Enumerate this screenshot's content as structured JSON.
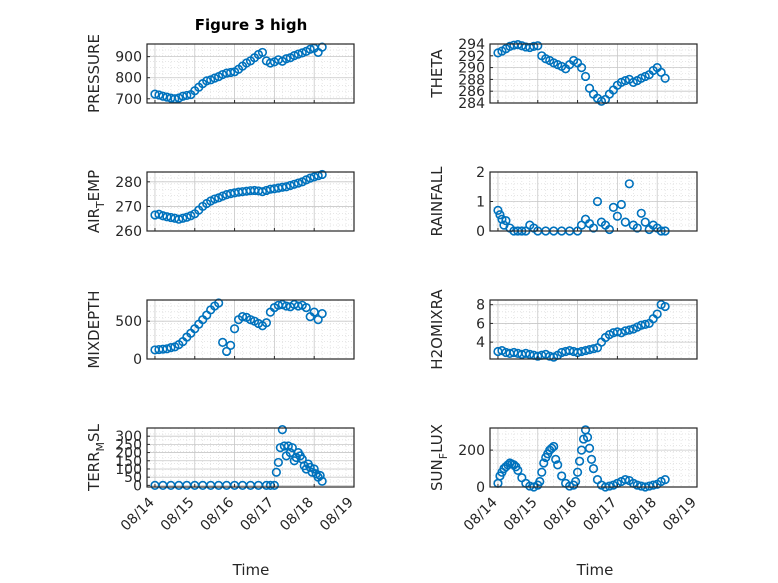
{
  "figure": {
    "title": "Figure 3 high",
    "xlabel": "Time"
  },
  "chart_data": [
    {
      "type": "scatter",
      "ylabel": "PRESSURE",
      "ylabel_sub": "",
      "ylabel_tail": "",
      "ylim": [
        680,
        960
      ],
      "yticks": [
        "700",
        "800",
        "900"
      ],
      "ytick_values": [
        700,
        800,
        900
      ],
      "marker_color": "#0072BD",
      "x": [
        14.0,
        14.1,
        14.2,
        14.3,
        14.4,
        14.5,
        14.6,
        14.7,
        14.8,
        14.9,
        15.0,
        15.1,
        15.2,
        15.3,
        15.4,
        15.5,
        15.6,
        15.7,
        15.8,
        15.9,
        16.0,
        16.1,
        16.2,
        16.3,
        16.4,
        16.5,
        16.6,
        16.7,
        16.8,
        16.9,
        17.0,
        17.1,
        17.2,
        17.3,
        17.4,
        17.5,
        17.6,
        17.7,
        17.8,
        17.9,
        18.0,
        18.1,
        18.2
      ],
      "y": [
        722,
        718,
        712,
        708,
        703,
        700,
        704,
        712,
        716,
        720,
        738,
        755,
        772,
        785,
        790,
        798,
        805,
        815,
        822,
        825,
        828,
        840,
        855,
        870,
        880,
        895,
        910,
        920,
        880,
        870,
        875,
        885,
        878,
        890,
        895,
        905,
        912,
        918,
        925,
        935,
        940,
        920,
        945
      ]
    },
    {
      "type": "scatter",
      "ylabel": "THETA",
      "ylabel_sub": "",
      "ylabel_tail": "",
      "ylim": [
        284,
        294
      ],
      "yticks": [
        "284",
        "286",
        "288",
        "290",
        "292",
        "294"
      ],
      "ytick_values": [
        284,
        286,
        288,
        290,
        292,
        294
      ],
      "marker_color": "#0072BD",
      "x": [
        14.0,
        14.1,
        14.2,
        14.3,
        14.4,
        14.5,
        14.6,
        14.7,
        14.8,
        14.9,
        15.0,
        15.1,
        15.2,
        15.3,
        15.4,
        15.5,
        15.6,
        15.7,
        15.8,
        15.9,
        16.0,
        16.1,
        16.2,
        16.3,
        16.4,
        16.5,
        16.6,
        16.7,
        16.8,
        16.9,
        17.0,
        17.1,
        17.2,
        17.3,
        17.4,
        17.5,
        17.6,
        17.7,
        17.8,
        17.9,
        18.0,
        18.1,
        18.2
      ],
      "y": [
        292.5,
        292.8,
        293.2,
        293.6,
        293.8,
        293.9,
        293.7,
        293.5,
        293.4,
        293.6,
        293.7,
        292,
        291.5,
        291.2,
        290.8,
        290.5,
        290.2,
        289.8,
        290.5,
        291.2,
        290.8,
        290,
        288.5,
        286.5,
        285.5,
        284.8,
        284.3,
        284.6,
        285.5,
        286.2,
        287,
        287.5,
        287.8,
        288,
        287.5,
        287.8,
        288.2,
        288.5,
        288.8,
        289.5,
        290,
        289.2,
        288.2
      ]
    },
    {
      "type": "scatter",
      "ylabel": "AIR",
      "ylabel_sub": "T",
      "ylabel_tail": "EMP",
      "ylim": [
        260,
        284
      ],
      "yticks": [
        "260",
        "270",
        "280"
      ],
      "ytick_values": [
        260,
        270,
        280
      ],
      "marker_color": "#0072BD",
      "x": [
        14.0,
        14.1,
        14.2,
        14.3,
        14.4,
        14.5,
        14.6,
        14.7,
        14.8,
        14.9,
        15.0,
        15.1,
        15.2,
        15.3,
        15.4,
        15.5,
        15.6,
        15.7,
        15.8,
        15.9,
        16.0,
        16.1,
        16.2,
        16.3,
        16.4,
        16.5,
        16.6,
        16.7,
        16.8,
        16.9,
        17.0,
        17.1,
        17.2,
        17.3,
        17.4,
        17.5,
        17.6,
        17.7,
        17.8,
        17.9,
        18.0,
        18.1,
        18.2
      ],
      "y": [
        266.5,
        266.8,
        266.2,
        265.8,
        265.5,
        265.2,
        264.8,
        265.2,
        265.6,
        266.2,
        267,
        268.5,
        270,
        271.2,
        272.2,
        273,
        273.5,
        274.2,
        274.8,
        275.2,
        275.5,
        275.8,
        276,
        276.2,
        276.4,
        276.5,
        276.3,
        276,
        276.5,
        277,
        277.2,
        277.5,
        277.8,
        278,
        278.5,
        279,
        279.5,
        280,
        280.8,
        281.5,
        282,
        282.5,
        283
      ]
    },
    {
      "type": "scatter",
      "ylabel": "RAINFALL",
      "ylabel_sub": "",
      "ylabel_tail": "",
      "ylim": [
        0,
        2
      ],
      "yticks": [
        "0",
        "1",
        "2"
      ],
      "ytick_values": [
        0,
        1,
        2
      ],
      "marker_color": "#0072BD",
      "x": [
        14.0,
        14.05,
        14.1,
        14.15,
        14.2,
        14.3,
        14.4,
        14.5,
        14.6,
        14.7,
        14.8,
        14.9,
        15.0,
        15.2,
        15.4,
        15.6,
        15.8,
        16.0,
        16.1,
        16.2,
        16.3,
        16.4,
        16.5,
        16.6,
        16.7,
        16.8,
        16.9,
        17.0,
        17.1,
        17.2,
        17.3,
        17.4,
        17.5,
        17.6,
        17.7,
        17.8,
        17.9,
        18.0,
        18.1,
        18.2
      ],
      "y": [
        0.7,
        0.55,
        0.4,
        0.2,
        0.35,
        0.1,
        0.0,
        0.0,
        0.0,
        0.0,
        0.2,
        0.1,
        0.0,
        0.0,
        0.0,
        0.0,
        0.0,
        0.0,
        0.2,
        0.4,
        0.25,
        0.1,
        1.0,
        0.3,
        0.2,
        0.05,
        0.8,
        0.5,
        0.9,
        0.3,
        1.6,
        0.2,
        0.1,
        0.6,
        0.3,
        0.05,
        0.2,
        0.1,
        0.0,
        0.0
      ]
    },
    {
      "type": "scatter",
      "ylabel": "MIXDEPTH",
      "ylabel_sub": "",
      "ylabel_tail": "",
      "ylim": [
        0,
        780
      ],
      "yticks": [
        "0",
        "500"
      ],
      "ytick_values": [
        0,
        500
      ],
      "marker_color": "#0072BD",
      "x": [
        14.0,
        14.1,
        14.2,
        14.3,
        14.4,
        14.5,
        14.6,
        14.7,
        14.8,
        14.9,
        15.0,
        15.1,
        15.2,
        15.3,
        15.4,
        15.5,
        15.6,
        15.7,
        15.8,
        15.9,
        16.0,
        16.1,
        16.2,
        16.3,
        16.4,
        16.5,
        16.6,
        16.7,
        16.8,
        16.9,
        17.0,
        17.1,
        17.2,
        17.3,
        17.4,
        17.5,
        17.6,
        17.7,
        17.8,
        17.9,
        18.0,
        18.1,
        18.2
      ],
      "y": [
        120,
        125,
        130,
        135,
        150,
        160,
        190,
        230,
        290,
        340,
        400,
        460,
        520,
        580,
        650,
        700,
        740,
        220,
        100,
        180,
        400,
        520,
        560,
        550,
        520,
        500,
        470,
        440,
        480,
        620,
        680,
        710,
        720,
        700,
        690,
        720,
        700,
        710,
        680,
        560,
        620,
        520,
        600
      ]
    },
    {
      "type": "scatter",
      "ylabel": "H2OMIXRA",
      "ylabel_sub": "",
      "ylabel_tail": "",
      "ylim": [
        2.2,
        8.5
      ],
      "yticks": [
        "4",
        "6",
        "8"
      ],
      "ytick_values": [
        4,
        6,
        8
      ],
      "marker_color": "#0072BD",
      "x": [
        14.0,
        14.1,
        14.2,
        14.3,
        14.4,
        14.5,
        14.6,
        14.7,
        14.8,
        14.9,
        15.0,
        15.1,
        15.2,
        15.3,
        15.4,
        15.5,
        15.6,
        15.7,
        15.8,
        15.9,
        16.0,
        16.1,
        16.2,
        16.3,
        16.4,
        16.5,
        16.6,
        16.7,
        16.8,
        16.9,
        17.0,
        17.1,
        17.2,
        17.3,
        17.4,
        17.5,
        17.6,
        17.7,
        17.8,
        17.9,
        18.0,
        18.1,
        18.2
      ],
      "y": [
        3.0,
        3.1,
        2.9,
        2.8,
        2.9,
        2.8,
        2.7,
        2.8,
        2.7,
        2.6,
        2.5,
        2.6,
        2.7,
        2.5,
        2.4,
        2.6,
        2.9,
        3.0,
        3.1,
        3.0,
        2.9,
        3.0,
        3.1,
        3.2,
        3.3,
        3.4,
        4.0,
        4.5,
        4.8,
        5.0,
        5.1,
        5.0,
        5.2,
        5.3,
        5.4,
        5.6,
        5.8,
        5.9,
        6.0,
        6.5,
        7.0,
        8.0,
        7.8
      ]
    },
    {
      "type": "scatter",
      "ylabel": "TERR",
      "ylabel_sub": "M",
      "ylabel_tail": "SL",
      "ylim": [
        -10,
        350
      ],
      "yticks": [
        "0",
        "50",
        "100",
        "150",
        "200",
        "250",
        "300"
      ],
      "ytick_values": [
        0,
        50,
        100,
        150,
        200,
        250,
        300
      ],
      "marker_color": "#0072BD",
      "x": [
        14.0,
        14.2,
        14.4,
        14.6,
        14.8,
        15.0,
        15.2,
        15.4,
        15.6,
        15.8,
        16.0,
        16.2,
        16.4,
        16.6,
        16.8,
        16.9,
        17.0,
        17.05,
        17.1,
        17.15,
        17.2,
        17.25,
        17.3,
        17.35,
        17.4,
        17.45,
        17.5,
        17.55,
        17.6,
        17.65,
        17.7,
        17.75,
        17.8,
        17.85,
        17.9,
        17.95,
        18.0,
        18.05,
        18.1,
        18.15,
        18.2
      ],
      "y": [
        0,
        0,
        0,
        0,
        0,
        0,
        0,
        0,
        0,
        0,
        0,
        0,
        0,
        0,
        0,
        0,
        0,
        80,
        140,
        230,
        340,
        240,
        180,
        240,
        200,
        230,
        150,
        170,
        200,
        180,
        160,
        120,
        100,
        130,
        110,
        80,
        100,
        70,
        50,
        60,
        25
      ]
    },
    {
      "type": "scatter",
      "ylabel": "SUN",
      "ylabel_sub": "F",
      "ylabel_tail": "LUX",
      "ylim": [
        0,
        320
      ],
      "yticks": [
        "0",
        "200"
      ],
      "ytick_values": [
        0,
        200
      ],
      "marker_color": "#0072BD",
      "x": [
        14.0,
        14.05,
        14.1,
        14.15,
        14.2,
        14.25,
        14.3,
        14.35,
        14.4,
        14.45,
        14.5,
        14.6,
        14.7,
        14.8,
        14.9,
        15.0,
        15.05,
        15.1,
        15.15,
        15.2,
        15.25,
        15.3,
        15.35,
        15.4,
        15.45,
        15.5,
        15.6,
        15.7,
        15.8,
        15.9,
        15.95,
        16.0,
        16.05,
        16.1,
        16.15,
        16.2,
        16.25,
        16.3,
        16.35,
        16.4,
        16.5,
        16.6,
        16.7,
        16.8,
        16.9,
        17.0,
        17.1,
        17.2,
        17.3,
        17.4,
        17.5,
        17.6,
        17.7,
        17.8,
        17.9,
        18.0,
        18.1,
        18.2
      ],
      "y": [
        20,
        60,
        80,
        100,
        110,
        120,
        130,
        125,
        120,
        110,
        90,
        50,
        20,
        5,
        0,
        10,
        30,
        80,
        130,
        160,
        180,
        200,
        210,
        220,
        150,
        120,
        60,
        20,
        5,
        10,
        30,
        80,
        140,
        200,
        260,
        310,
        270,
        210,
        150,
        100,
        40,
        10,
        0,
        5,
        10,
        20,
        30,
        40,
        35,
        20,
        10,
        5,
        0,
        5,
        10,
        15,
        30,
        40
      ]
    }
  ]
}
